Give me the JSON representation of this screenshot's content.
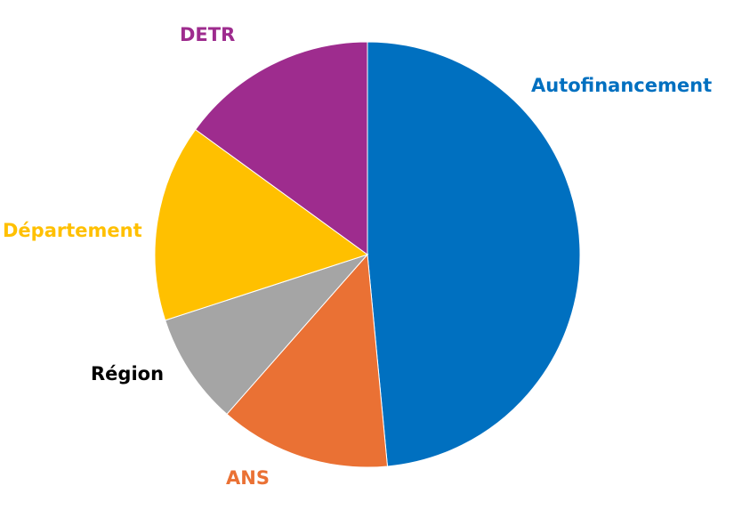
{
  "chart_data": {
    "type": "pie",
    "start_angle_deg": 0,
    "direction": "clockwise",
    "slices": [
      {
        "label": "Autofinancement",
        "value": 48.5,
        "color": "#0070c0"
      },
      {
        "label": "ANS",
        "value": 13.0,
        "color": "#ea7134"
      },
      {
        "label": "Région",
        "value": 8.5,
        "color": "#a5a5a5"
      },
      {
        "label": "Département",
        "value": 15.0,
        "color": "#ffc000"
      },
      {
        "label": "DETR",
        "value": 15.0,
        "color": "#9e2c8e"
      }
    ],
    "label_colors": [
      "#0070c0",
      "#ea7134",
      "#000000",
      "#ffc000",
      "#9e2c8e"
    ]
  }
}
